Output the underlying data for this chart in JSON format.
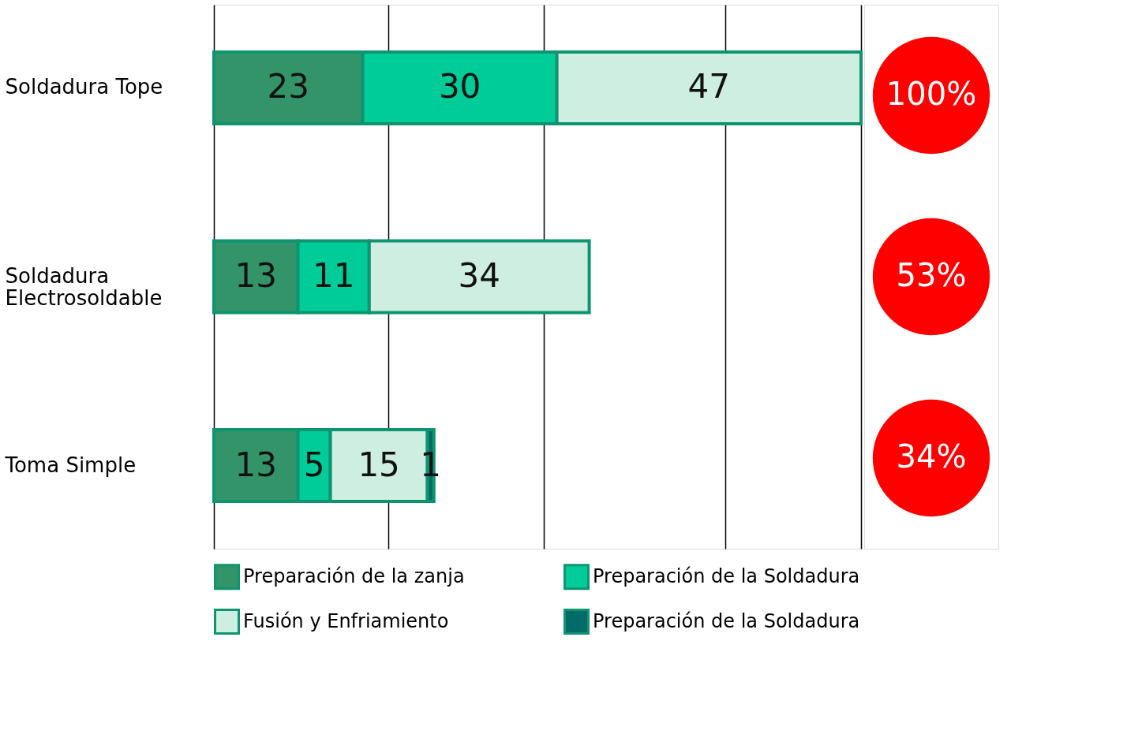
{
  "chart_data": {
    "type": "bar",
    "orientation": "horizontal",
    "stacked": true,
    "data_labels": true,
    "grid": "x",
    "tick_labels": "y",
    "legend": "bottom",
    "categories": [
      "Soldadura Tope",
      "Soldadura\nElectrosoldable",
      "Toma Simple"
    ],
    "series": [
      {
        "name": "Preparación de la zanja",
        "color": "#339469",
        "values": [
          23,
          13,
          13
        ]
      },
      {
        "name": "Preparación de la Soldadura",
        "color": "#00cc99",
        "values": [
          30,
          11,
          5
        ]
      },
      {
        "name": "Fusión y Enfriamiento",
        "color": "#cdeee0",
        "values": [
          47,
          34,
          15
        ]
      },
      {
        "name": "Preparación de la Soldadura",
        "color": "#006b68",
        "values": [
          null,
          null,
          1
        ]
      }
    ],
    "xlim": [
      0,
      100
    ],
    "xticks": [
      {
        "value": 0,
        "label": null
      },
      {
        "value": 27,
        "label": null
      },
      {
        "value": 51,
        "label": null
      },
      {
        "value": 79,
        "label": null
      },
      {
        "value": 100,
        "label": null
      }
    ],
    "annotations": [
      "100%",
      "53%",
      "34%"
    ]
  }
}
